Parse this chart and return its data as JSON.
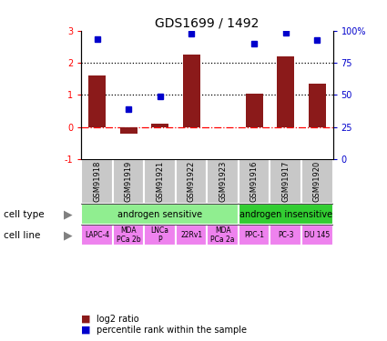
{
  "title": "GDS1699 / 1492",
  "samples": [
    "GSM91918",
    "GSM91919",
    "GSM91921",
    "GSM91922",
    "GSM91923",
    "GSM91916",
    "GSM91917",
    "GSM91920"
  ],
  "log2_ratio": [
    1.6,
    -0.2,
    0.1,
    2.25,
    0.0,
    1.05,
    2.2,
    1.35
  ],
  "percentile_rank": [
    2.75,
    0.55,
    0.95,
    2.9,
    null,
    2.6,
    2.95,
    2.7
  ],
  "bar_color": "#8B1A1A",
  "dot_color": "#0000CC",
  "cell_type_groups": [
    {
      "label": "androgen sensitive",
      "start": 0,
      "end": 5,
      "color": "#90EE90"
    },
    {
      "label": "androgen insensitive",
      "start": 5,
      "end": 8,
      "color": "#32CD32"
    }
  ],
  "cell_lines": [
    "LAPC-4",
    "MDA\nPCa 2b",
    "LNCa\nP",
    "22Rv1",
    "MDA\nPCa 2a",
    "PPC-1",
    "PC-3",
    "DU 145"
  ],
  "cell_line_color": "#EE82EE",
  "sample_bg_color": "#C8C8C8",
  "ylim_left": [
    -1,
    3
  ],
  "yticks_left": [
    -1,
    0,
    1,
    2,
    3
  ],
  "ytick_labels_right": [
    "0",
    "25",
    "50",
    "75",
    "100%"
  ],
  "legend_items": [
    {
      "label": "log2 ratio",
      "color": "#8B1A1A"
    },
    {
      "label": "percentile rank within the sample",
      "color": "#0000CC"
    }
  ],
  "title_fontsize": 10,
  "tick_fontsize": 7,
  "sample_fontsize": 6,
  "label_fontsize": 7.5
}
